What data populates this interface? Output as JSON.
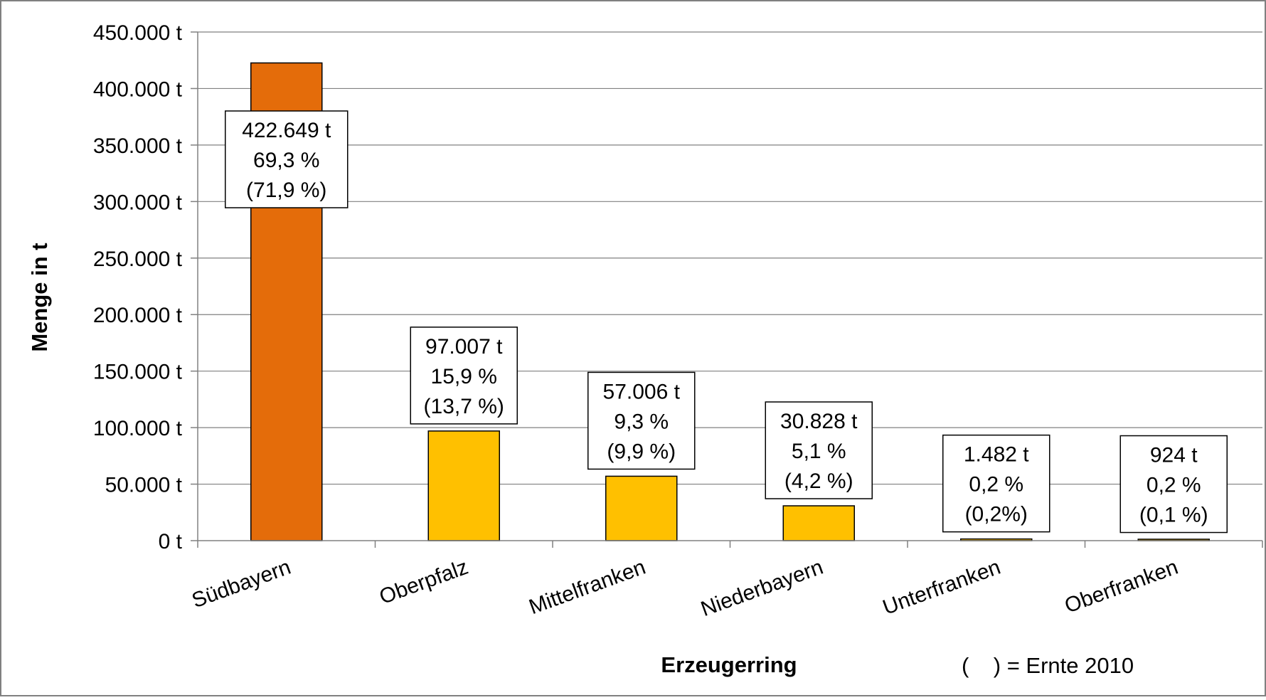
{
  "chart_data": {
    "type": "bar",
    "categories": [
      "Südbayern",
      "Oberpfalz",
      "Mittelfranken",
      "Niederbayern",
      "Unterfranken",
      "Oberfranken"
    ],
    "values": [
      422649,
      97007,
      57006,
      30828,
      1482,
      924
    ],
    "data_labels": [
      [
        "422.649 t",
        "69,3 %",
        "(71,9 %)"
      ],
      [
        "97.007 t",
        "15,9 %",
        "(13,7 %)"
      ],
      [
        "57.006 t",
        "9,3 %",
        "(9,9 %)"
      ],
      [
        "30.828 t",
        "5,1 %",
        "(4,2 %)"
      ],
      [
        "1.482 t",
        "0,2 %",
        "(0,2%)"
      ],
      [
        "924 t",
        "0,2 %",
        "(0,1 %)"
      ]
    ],
    "bar_colors": [
      "#E46C0A",
      "#FFC000",
      "#FFC000",
      "#FFC000",
      "#FFC000",
      "#FFC000"
    ],
    "xlabel": "Erzeugerring",
    "ylabel": "Menge in t",
    "ylim": [
      0,
      450000
    ],
    "yticks": [
      0,
      50000,
      100000,
      150000,
      200000,
      250000,
      300000,
      350000,
      400000,
      450000
    ],
    "ytick_labels": [
      "0 t",
      "50.000 t",
      "100.000 t",
      "150.000 t",
      "200.000 t",
      "250.000 t",
      "300.000 t",
      "350.000 t",
      "400.000 t",
      "450.000 t"
    ],
    "grid": true,
    "note": "(    ) = Ernte 2010"
  }
}
